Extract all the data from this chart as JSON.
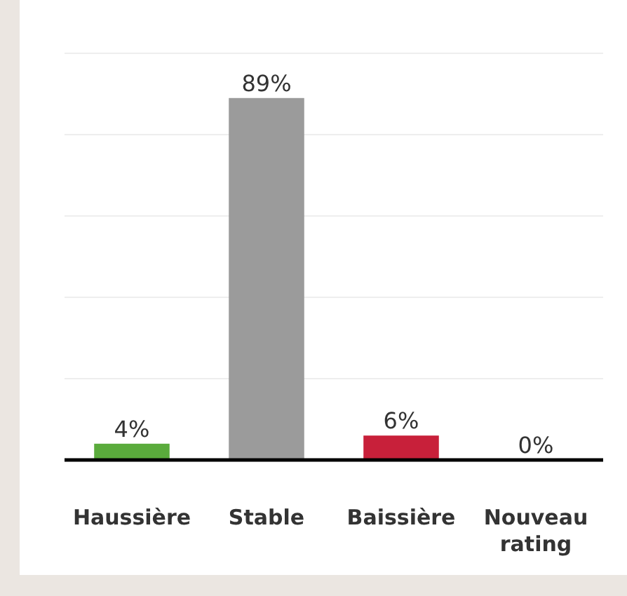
{
  "chart_data": {
    "type": "bar",
    "categories": [
      "Haussière",
      "Stable",
      "Baissière",
      "Nouveau rating"
    ],
    "values": [
      4,
      89,
      6,
      0
    ],
    "colors": [
      "#5aab3c",
      "#9b9b9b",
      "#c8203a",
      "#9b9b9b"
    ],
    "ylim": [
      0,
      100
    ],
    "yticks": [
      {
        "value": 0,
        "label": null
      },
      {
        "value": 20,
        "label": null
      },
      {
        "value": 40,
        "label": null
      },
      {
        "value": 60,
        "label": null
      },
      {
        "value": 80,
        "label": null
      },
      {
        "value": 100,
        "label": null
      }
    ],
    "value_labels": [
      "4%",
      "89%",
      "6%",
      "0%"
    ],
    "grid": "y",
    "tick_labels": "x"
  }
}
